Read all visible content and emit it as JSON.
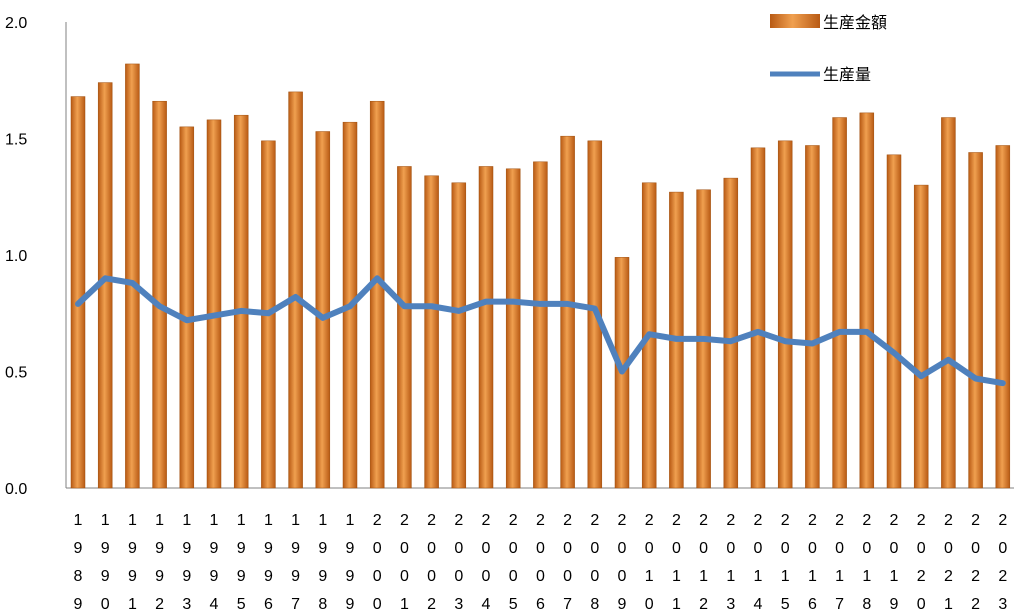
{
  "chart_data": {
    "type": "bar",
    "categories": [
      "1989",
      "1990",
      "1991",
      "1992",
      "1993",
      "1994",
      "1995",
      "1996",
      "1997",
      "1998",
      "1999",
      "2000",
      "2001",
      "2002",
      "2003",
      "2004",
      "2005",
      "2006",
      "2007",
      "2008",
      "2009",
      "2010",
      "2011",
      "2012",
      "2013",
      "2014",
      "2015",
      "2016",
      "2017",
      "2018",
      "2019",
      "2020",
      "2021",
      "2022",
      "2023"
    ],
    "series": [
      {
        "name": "生産金額",
        "kind": "bar",
        "color": "#d2691e",
        "values": [
          1.68,
          1.74,
          1.82,
          1.66,
          1.55,
          1.58,
          1.6,
          1.49,
          1.7,
          1.53,
          1.57,
          1.66,
          1.38,
          1.34,
          1.31,
          1.38,
          1.37,
          1.4,
          1.51,
          1.49,
          0.99,
          1.31,
          1.27,
          1.28,
          1.33,
          1.46,
          1.49,
          1.47,
          1.59,
          1.61,
          1.43,
          1.3,
          1.59,
          1.44,
          1.47
        ]
      },
      {
        "name": "生産量",
        "kind": "line",
        "color": "#4f81bd",
        "values": [
          0.79,
          0.9,
          0.88,
          0.78,
          0.72,
          0.74,
          0.76,
          0.75,
          0.82,
          0.73,
          0.78,
          0.9,
          0.78,
          0.78,
          0.76,
          0.8,
          0.8,
          0.79,
          0.79,
          0.77,
          0.5,
          0.66,
          0.64,
          0.64,
          0.63,
          0.67,
          0.63,
          0.62,
          0.67,
          0.67,
          0.58,
          0.48,
          0.55,
          0.47,
          0.45
        ]
      }
    ],
    "ylim": [
      0,
      2.0
    ],
    "yticks": [
      "0.0",
      "0.5",
      "1.0",
      "1.5",
      "2.0"
    ],
    "title": "",
    "xlabel": "",
    "ylabel": "",
    "legend_position": "top-right",
    "grid": false
  }
}
